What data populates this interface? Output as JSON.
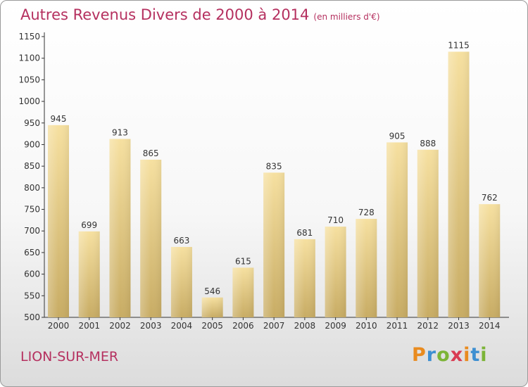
{
  "header": {
    "title": "Autres Revenus Divers de 2000 à 2014",
    "subtitle": "(en milliers d'€)"
  },
  "footer": {
    "location": "LION-SUR-MER",
    "brand": "Proxiti"
  },
  "colors": {
    "title": "#b5305f",
    "bar_top": "#f6e0a0",
    "bar_bottom": "#c8ac64",
    "axis": "#333333",
    "brand_letters": [
      "#e98b1f",
      "#3d8fd1",
      "#7cb437",
      "#d93b52",
      "#e98b1f",
      "#3d8fd1",
      "#7cb437"
    ]
  },
  "chart_data": {
    "type": "bar",
    "categories": [
      "2000",
      "2001",
      "2002",
      "2003",
      "2004",
      "2005",
      "2006",
      "2007",
      "2008",
      "2009",
      "2010",
      "2011",
      "2012",
      "2013",
      "2014"
    ],
    "values": [
      945,
      699,
      913,
      865,
      663,
      546,
      615,
      835,
      681,
      710,
      728,
      905,
      888,
      1115,
      762
    ],
    "ylim": [
      500,
      1150
    ],
    "yticks": [
      500,
      550,
      600,
      650,
      700,
      750,
      800,
      850,
      900,
      950,
      1000,
      1050,
      1100,
      1150
    ],
    "grid": false,
    "legend": "none"
  }
}
